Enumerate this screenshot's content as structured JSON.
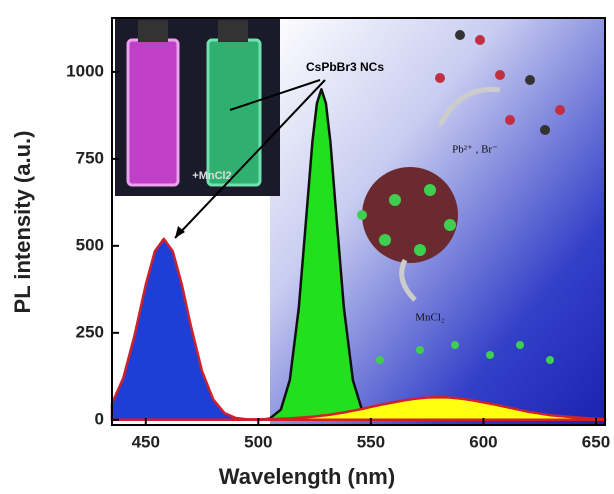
{
  "chart_data": {
    "type": "area",
    "x_label": "Wavelength (nm)",
    "y_label": "PL intensity (a.u.)",
    "x": [
      435,
      440,
      445,
      450,
      454,
      458,
      462,
      466,
      470,
      475,
      480,
      485,
      490,
      495,
      500,
      505,
      510,
      514,
      518,
      521,
      524,
      526,
      528,
      530,
      532,
      535,
      538,
      542,
      546,
      550,
      555,
      560,
      565,
      570,
      575,
      580,
      585,
      590,
      595,
      600,
      605,
      610,
      620,
      630,
      640,
      650,
      654
    ],
    "series": [
      {
        "color": "#1e3fd6",
        "line_color": "#d0202a",
        "values": [
          47,
          120,
          242,
          389,
          484,
          520,
          484,
          389,
          271,
          140,
          58,
          19,
          5,
          1,
          0,
          0,
          0,
          0,
          0,
          0,
          0,
          0,
          0,
          0,
          0,
          0,
          0,
          0,
          0,
          0,
          0,
          0,
          0,
          0,
          0,
          0,
          0,
          0,
          0,
          0,
          0,
          0,
          0,
          0,
          0,
          0,
          0
        ]
      },
      {
        "color": "#22e01e",
        "line_color": "#111111",
        "values": [
          0,
          0,
          0,
          0,
          0,
          0,
          0,
          0,
          0,
          0,
          0,
          0,
          0,
          0,
          0,
          3,
          29,
          114,
          322,
          559,
          799,
          910,
          950,
          910,
          799,
          559,
          322,
          114,
          29,
          5,
          0,
          0,
          0,
          0,
          0,
          0,
          0,
          0,
          0,
          0,
          0,
          0,
          0,
          0,
          0,
          0,
          0
        ]
      },
      {
        "color": "#ffff10",
        "line_color": "#d0202a",
        "values": [
          0,
          0,
          0,
          0,
          0,
          0,
          0,
          0,
          0,
          0,
          0,
          0,
          0,
          1,
          1,
          2,
          3,
          4,
          6,
          7,
          9,
          10,
          12,
          13,
          15,
          18,
          21,
          26,
          31,
          37,
          44,
          50,
          56,
          61,
          64,
          65,
          64,
          61,
          56,
          50,
          44,
          37,
          23,
          13,
          7,
          3,
          2
        ]
      }
    ],
    "xlim": [
      435,
      654
    ],
    "xticks": [
      450,
      500,
      550,
      600,
      650
    ],
    "ylim": [
      -15,
      1155
    ],
    "yticks": [
      0,
      250,
      500,
      750,
      1000
    ],
    "annotations": [
      "CsPbBr3 NCs",
      "+MnCl2",
      "Pb²⁺ , Br⁻",
      "MnCl₂"
    ]
  }
}
